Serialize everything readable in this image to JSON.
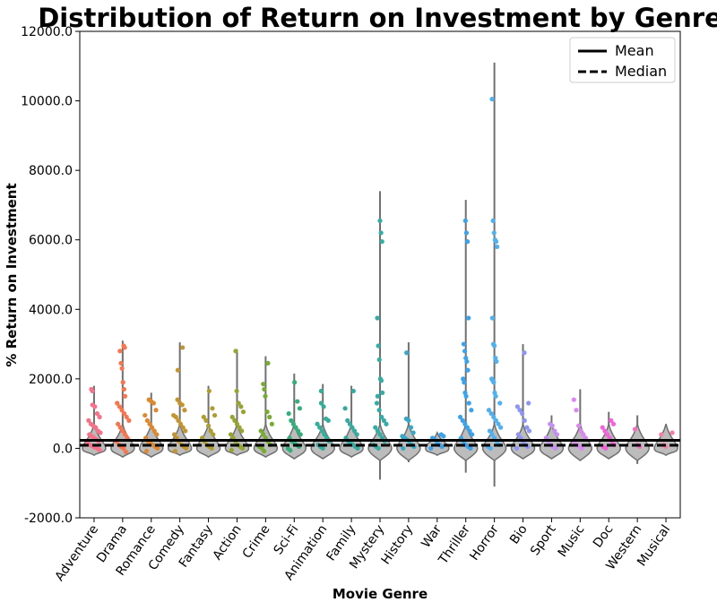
{
  "chart_data": {
    "type": "violin",
    "title": "Distribution of Return on Investment by Genre",
    "xlabel": "Movie Genre",
    "ylabel": "% Return on Investment",
    "ylim": [
      -2000,
      12000
    ],
    "yticks": [
      -2000,
      0,
      2000,
      4000,
      6000,
      8000,
      10000,
      12000
    ],
    "ytick_labels": [
      "-2000.0",
      "0.0",
      "2000.0",
      "4000.0",
      "6000.0",
      "8000.0",
      "10000.0",
      "12000.0"
    ],
    "grid": false,
    "legend": {
      "placement": "top-right",
      "entries": [
        {
          "label": "Mean",
          "style": "solid"
        },
        {
          "label": "Median",
          "style": "dashed"
        }
      ]
    },
    "reference_lines": [
      {
        "name": "Mean",
        "value": 230,
        "style": "solid",
        "color": "#000000"
      },
      {
        "name": "Median",
        "value": 90,
        "style": "dashed",
        "color": "#000000"
      }
    ],
    "categories": [
      "Adventure",
      "Drama",
      "Romance",
      "Comedy",
      "Fantasy",
      "Action",
      "Crime",
      "Sci-Fi",
      "Animation",
      "Family",
      "Mystery",
      "History",
      "War",
      "Thriller",
      "Horror",
      "Bio",
      "Sport",
      "Music",
      "Doc",
      "Western",
      "Musical"
    ],
    "colors": [
      "#f77189",
      "#f7754f",
      "#dc8932",
      "#c39532",
      "#ae9d31",
      "#97a431",
      "#77ab31",
      "#33b07a",
      "#35ad9c",
      "#37aaa0",
      "#36ada4",
      "#38a9c5",
      "#3ba3ec",
      "#3ba3ec",
      "#50b1f0",
      "#8e96f3",
      "#c590f2",
      "#dc87f2",
      "#f461dd",
      "#f66ec4",
      "#f67fa8"
    ],
    "violins": [
      {
        "genre": "Adventure",
        "min": -200,
        "max": 1800,
        "points": [
          1700,
          1650,
          1250,
          1200,
          1000,
          900,
          800,
          700,
          650,
          600,
          500,
          450,
          400,
          350,
          300,
          250,
          200,
          150,
          100,
          60,
          30,
          0,
          -50
        ]
      },
      {
        "genre": "Drama",
        "min": -250,
        "max": 3100,
        "points": [
          2950,
          2900,
          2800,
          2450,
          2300,
          1900,
          1700,
          1500,
          1300,
          1200,
          1100,
          1000,
          900,
          800,
          700,
          600,
          500,
          400,
          300,
          200,
          100,
          50,
          0,
          -100
        ]
      },
      {
        "genre": "Romance",
        "min": -250,
        "max": 1600,
        "points": [
          1400,
          1350,
          1300,
          1100,
          950,
          800,
          700,
          600,
          500,
          400,
          300,
          200,
          150,
          100,
          50,
          0,
          -80
        ]
      },
      {
        "genre": "Comedy",
        "min": -200,
        "max": 3050,
        "points": [
          2900,
          2250,
          1400,
          1300,
          1250,
          1100,
          950,
          900,
          800,
          700,
          600,
          500,
          400,
          300,
          200,
          100,
          50,
          0,
          -80
        ]
      },
      {
        "genre": "Fantasy",
        "min": -250,
        "max": 1800,
        "points": [
          1650,
          1150,
          950,
          900,
          800,
          650,
          500,
          400,
          300,
          200,
          100,
          50,
          0
        ]
      },
      {
        "genre": "Action",
        "min": -200,
        "max": 2850,
        "points": [
          2800,
          1650,
          1300,
          1200,
          1050,
          900,
          800,
          700,
          600,
          500,
          400,
          300,
          200,
          100,
          50,
          0,
          -50
        ]
      },
      {
        "genre": "Crime",
        "min": -250,
        "max": 2650,
        "points": [
          2450,
          1850,
          1700,
          1500,
          1050,
          900,
          700,
          500,
          400,
          300,
          200,
          100,
          50,
          0,
          -80
        ]
      },
      {
        "genre": "Sci-Fi",
        "min": -300,
        "max": 2150,
        "points": [
          1900,
          1350,
          1150,
          1000,
          800,
          700,
          600,
          500,
          400,
          300,
          200,
          150,
          100,
          50,
          0,
          -60
        ]
      },
      {
        "genre": "Animation",
        "min": -300,
        "max": 1850,
        "points": [
          1650,
          1300,
          1200,
          850,
          800,
          700,
          600,
          500,
          400,
          300,
          200,
          100,
          50,
          0
        ]
      },
      {
        "genre": "Family",
        "min": -250,
        "max": 1800,
        "points": [
          1650,
          1150,
          800,
          700,
          600,
          500,
          400,
          300,
          200,
          150,
          100,
          50,
          0
        ]
      },
      {
        "genre": "Mystery",
        "min": -900,
        "max": 7400,
        "points": [
          6550,
          6200,
          5950,
          3750,
          2950,
          2550,
          2000,
          1950,
          1600,
          1500,
          1300,
          1100,
          900,
          800,
          700,
          600,
          500,
          400,
          300,
          200,
          100,
          50,
          0
        ]
      },
      {
        "genre": "History",
        "min": -400,
        "max": 3050,
        "points": [
          2750,
          850,
          800,
          600,
          450,
          350,
          300,
          250,
          200,
          100,
          50,
          0
        ]
      },
      {
        "genre": "War",
        "min": -200,
        "max": 450,
        "points": [
          400,
          350,
          300,
          250,
          150,
          100,
          50,
          0
        ]
      },
      {
        "genre": "Thriller",
        "min": -700,
        "max": 7150,
        "points": [
          6550,
          6200,
          5950,
          3750,
          3000,
          2800,
          2600,
          2500,
          2250,
          2000,
          1900,
          1600,
          1500,
          1300,
          1100,
          900,
          800,
          700,
          600,
          500,
          400,
          300,
          200,
          100,
          50,
          0
        ]
      },
      {
        "genre": "Horror",
        "min": -1100,
        "max": 11100,
        "points": [
          10050,
          6550,
          6200,
          6000,
          5950,
          5800,
          3750,
          3000,
          2950,
          2600,
          2500,
          2000,
          1950,
          1900,
          1600,
          1500,
          1300,
          1100,
          1000,
          900,
          800,
          700,
          600,
          500,
          400,
          300,
          200,
          100,
          50,
          0
        ]
      },
      {
        "genre": "Bio",
        "min": -300,
        "max": 3000,
        "points": [
          2750,
          1300,
          1200,
          1100,
          1000,
          800,
          600,
          500,
          400,
          300,
          200,
          100,
          50,
          0
        ]
      },
      {
        "genre": "Sport",
        "min": -300,
        "max": 950,
        "points": [
          700,
          650,
          500,
          400,
          300,
          200,
          100,
          50,
          0
        ]
      },
      {
        "genre": "Music",
        "min": -350,
        "max": 1700,
        "points": [
          1400,
          1100,
          650,
          500,
          400,
          300,
          200,
          100,
          50,
          0
        ]
      },
      {
        "genre": "Doc",
        "min": -300,
        "max": 1050,
        "points": [
          800,
          700,
          600,
          500,
          400,
          300,
          200,
          100,
          50,
          0
        ]
      },
      {
        "genre": "Western",
        "min": -450,
        "max": 950,
        "points": [
          550,
          100,
          50
        ]
      },
      {
        "genre": "Musical",
        "min": -200,
        "max": 700,
        "points": [
          450,
          400,
          100,
          50
        ]
      }
    ]
  }
}
